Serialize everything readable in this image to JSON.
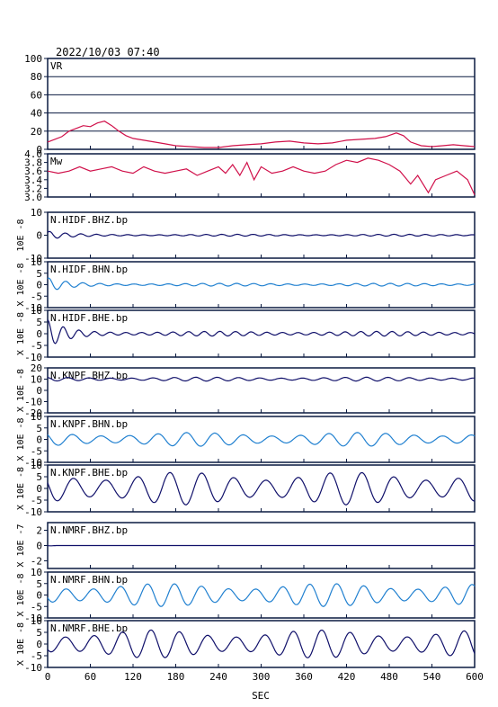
{
  "timestamp": "2022/10/03 07:40",
  "colors": {
    "frame": "#0a1a40",
    "vr_line": "#d0104a",
    "mw_line": "#d0104a",
    "dark_blue": "#10106a",
    "mid_blue": "#2080d0",
    "grid": "#0a1a40"
  },
  "chart_data": {
    "type": "line",
    "xlabel": "SEC",
    "xlim": [
      0,
      600
    ],
    "xticks": [
      "0",
      "60",
      "120",
      "180",
      "240",
      "300",
      "360",
      "420",
      "480",
      "540",
      "600"
    ],
    "panels": [
      {
        "key": "vr",
        "name": "VR",
        "ylabel": "",
        "ylim": [
          0,
          100
        ],
        "yticks": [
          "100",
          "80",
          "60",
          "40",
          "20",
          "0"
        ],
        "grid": true,
        "color_key": "vr_line",
        "series": [
          {
            "x": 0,
            "y": 8
          },
          {
            "x": 10,
            "y": 11
          },
          {
            "x": 20,
            "y": 14
          },
          {
            "x": 30,
            "y": 20
          },
          {
            "x": 40,
            "y": 23
          },
          {
            "x": 50,
            "y": 26
          },
          {
            "x": 60,
            "y": 25
          },
          {
            "x": 70,
            "y": 29
          },
          {
            "x": 80,
            "y": 31
          },
          {
            "x": 90,
            "y": 26
          },
          {
            "x": 100,
            "y": 20
          },
          {
            "x": 110,
            "y": 15
          },
          {
            "x": 120,
            "y": 12
          },
          {
            "x": 135,
            "y": 10
          },
          {
            "x": 150,
            "y": 8
          },
          {
            "x": 165,
            "y": 6
          },
          {
            "x": 180,
            "y": 4
          },
          {
            "x": 200,
            "y": 3
          },
          {
            "x": 220,
            "y": 2
          },
          {
            "x": 240,
            "y": 2
          },
          {
            "x": 260,
            "y": 4
          },
          {
            "x": 280,
            "y": 5
          },
          {
            "x": 300,
            "y": 6
          },
          {
            "x": 320,
            "y": 8
          },
          {
            "x": 340,
            "y": 9
          },
          {
            "x": 360,
            "y": 7
          },
          {
            "x": 380,
            "y": 6
          },
          {
            "x": 400,
            "y": 7
          },
          {
            "x": 420,
            "y": 10
          },
          {
            "x": 440,
            "y": 11
          },
          {
            "x": 460,
            "y": 12
          },
          {
            "x": 475,
            "y": 14
          },
          {
            "x": 490,
            "y": 18
          },
          {
            "x": 500,
            "y": 15
          },
          {
            "x": 510,
            "y": 8
          },
          {
            "x": 525,
            "y": 4
          },
          {
            "x": 540,
            "y": 3
          },
          {
            "x": 555,
            "y": 4
          },
          {
            "x": 570,
            "y": 5
          },
          {
            "x": 585,
            "y": 4
          },
          {
            "x": 600,
            "y": 3
          }
        ]
      },
      {
        "key": "mw",
        "name": "Mw",
        "ylabel": "",
        "ylim": [
          3.0,
          4.0
        ],
        "yticks": [
          "4.0",
          "3.8",
          "3.6",
          "3.4",
          "3.2",
          "3.0"
        ],
        "grid": false,
        "color_key": "mw_line",
        "series": [
          {
            "x": 0,
            "y": 3.6
          },
          {
            "x": 15,
            "y": 3.55
          },
          {
            "x": 30,
            "y": 3.6
          },
          {
            "x": 45,
            "y": 3.7
          },
          {
            "x": 60,
            "y": 3.6
          },
          {
            "x": 75,
            "y": 3.65
          },
          {
            "x": 90,
            "y": 3.7
          },
          {
            "x": 105,
            "y": 3.6
          },
          {
            "x": 120,
            "y": 3.55
          },
          {
            "x": 135,
            "y": 3.7
          },
          {
            "x": 150,
            "y": 3.6
          },
          {
            "x": 165,
            "y": 3.55
          },
          {
            "x": 180,
            "y": 3.6
          },
          {
            "x": 195,
            "y": 3.65
          },
          {
            "x": 210,
            "y": 3.5
          },
          {
            "x": 225,
            "y": 3.6
          },
          {
            "x": 240,
            "y": 3.7
          },
          {
            "x": 250,
            "y": 3.55
          },
          {
            "x": 260,
            "y": 3.75
          },
          {
            "x": 270,
            "y": 3.5
          },
          {
            "x": 280,
            "y": 3.8
          },
          {
            "x": 290,
            "y": 3.4
          },
          {
            "x": 300,
            "y": 3.7
          },
          {
            "x": 315,
            "y": 3.55
          },
          {
            "x": 330,
            "y": 3.6
          },
          {
            "x": 345,
            "y": 3.7
          },
          {
            "x": 360,
            "y": 3.6
          },
          {
            "x": 375,
            "y": 3.55
          },
          {
            "x": 390,
            "y": 3.6
          },
          {
            "x": 405,
            "y": 3.75
          },
          {
            "x": 420,
            "y": 3.85
          },
          {
            "x": 435,
            "y": 3.8
          },
          {
            "x": 450,
            "y": 3.9
          },
          {
            "x": 465,
            "y": 3.85
          },
          {
            "x": 480,
            "y": 3.75
          },
          {
            "x": 495,
            "y": 3.6
          },
          {
            "x": 510,
            "y": 3.3
          },
          {
            "x": 520,
            "y": 3.5
          },
          {
            "x": 535,
            "y": 3.1
          },
          {
            "x": 545,
            "y": 3.4
          },
          {
            "x": 560,
            "y": 3.5
          },
          {
            "x": 575,
            "y": 3.6
          },
          {
            "x": 590,
            "y": 3.4
          },
          {
            "x": 600,
            "y": 3.05
          }
        ]
      },
      {
        "key": "hidf_bhz",
        "name": "N.HIDF.BHZ.bp",
        "ylabel": "10E -8",
        "ylim": [
          -10,
          10
        ],
        "yticks": [
          "10",
          "0",
          "-10"
        ],
        "grid": false,
        "color_key": "dark_blue",
        "wave": {
          "amplitude": 1.5,
          "period": 22,
          "decay": 0.004,
          "floor": 0.4
        }
      },
      {
        "key": "hidf_bhn",
        "name": "N.HIDF.BHN.bp",
        "ylabel": "X 10E -8",
        "ylim": [
          -10,
          10
        ],
        "yticks": [
          "10",
          "5",
          "0",
          "-5",
          "-10"
        ],
        "grid": false,
        "color_key": "mid_blue",
        "wave": {
          "amplitude": 2.5,
          "period": 24,
          "decay": 0.004,
          "floor": 0.6
        }
      },
      {
        "key": "hidf_bhe",
        "name": "N.HIDF.BHE.bp",
        "ylabel": "X 10E -8",
        "ylim": [
          -10,
          10
        ],
        "yticks": [
          "10",
          "5",
          "0",
          "-5",
          "-10"
        ],
        "grid": false,
        "color_key": "dark_blue",
        "wave": {
          "amplitude": 5,
          "period": 22,
          "decay": 0.004,
          "floor": 1.0
        }
      },
      {
        "key": "knpf_bhz",
        "name": "N.KNPF.BHZ.bp",
        "ylabel": "X 10E -8",
        "ylim": [
          -20,
          20
        ],
        "yticks": [
          "20",
          "10",
          "0",
          "-10",
          "-20"
        ],
        "grid": false,
        "color_key": "dark_blue",
        "wave": {
          "amplitude": 1.2,
          "period": 30,
          "decay": 0.0,
          "floor": 0.5,
          "offset": 10
        }
      },
      {
        "key": "knpf_bhn",
        "name": "N.KNPF.BHN.bp",
        "ylabel": "X 10E -8",
        "ylim": [
          -10,
          10
        ],
        "yticks": [
          "10",
          "5",
          "0",
          "-5",
          "-10"
        ],
        "grid": false,
        "color_key": "mid_blue",
        "wave": {
          "amplitude": 1.5,
          "period": 40,
          "decay": 0.0,
          "floor": 1.5
        }
      },
      {
        "key": "knpf_bhe",
        "name": "N.KNPF.BHE.bp",
        "ylabel": "X 10E -8",
        "ylim": [
          -10,
          10
        ],
        "yticks": [
          "10",
          "5",
          "0",
          "-5",
          "-10"
        ],
        "grid": false,
        "color_key": "dark_blue",
        "wave": {
          "amplitude": 3.5,
          "period": 45,
          "decay": 0.0,
          "floor": 3.5
        }
      },
      {
        "key": "nmrf_bhz",
        "name": "N.NMRF.BHZ.bp",
        "ylabel": "X 10E -7",
        "ylim": [
          -3,
          3
        ],
        "yticks": [
          "2",
          "0",
          "-2"
        ],
        "grid": false,
        "color_key": "dark_blue",
        "wave": {
          "amplitude": 0.15,
          "period": 25,
          "decay": 0.02,
          "floor": 0.0
        }
      },
      {
        "key": "nmrf_bhn",
        "name": "N.NMRF.BHN.bp",
        "ylabel": "X 10E -8",
        "ylim": [
          -10,
          10
        ],
        "yticks": [
          "10",
          "5",
          "0",
          "-5",
          "-10"
        ],
        "grid": false,
        "color_key": "mid_blue",
        "wave": {
          "amplitude": 2.5,
          "period": 38,
          "decay": 0.0,
          "floor": 2.5
        }
      },
      {
        "key": "nmrf_bhe",
        "name": "N.NMRF.BHE.bp",
        "ylabel": "X 10E -8",
        "ylim": [
          -10,
          10
        ],
        "yticks": [
          "10",
          "5",
          "0",
          "-5",
          "-10"
        ],
        "grid": false,
        "color_key": "dark_blue",
        "wave": {
          "amplitude": 3,
          "period": 40,
          "decay": 0.0,
          "floor": 3
        }
      }
    ]
  }
}
